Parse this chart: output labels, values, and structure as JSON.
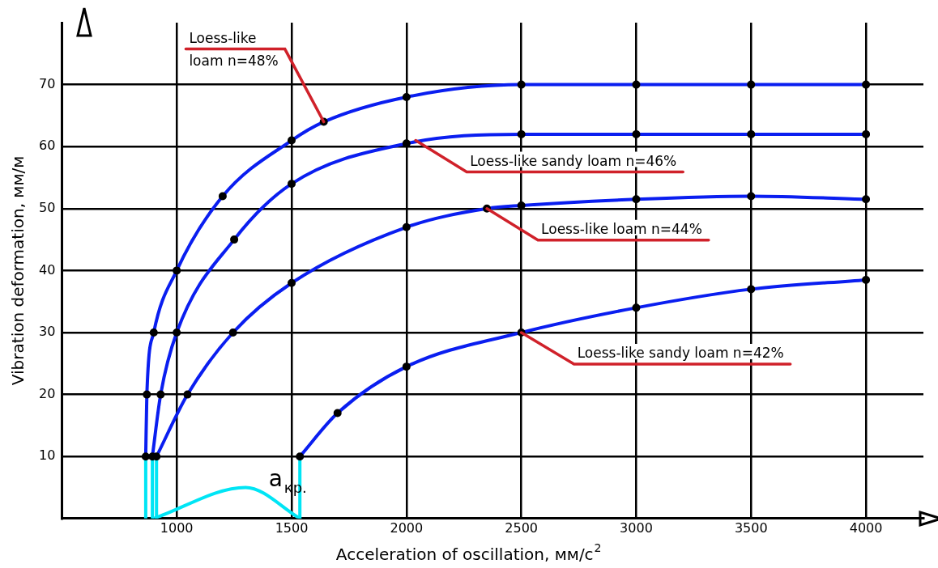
{
  "chart_data": {
    "type": "line",
    "xlabel": "Acceleration of oscillation, мм/c$^{2}$",
    "ylabel": "Vibration deformation, мм/м",
    "xlim": [
      500,
      4250
    ],
    "ylim": [
      0,
      80
    ],
    "xticks": [
      1000,
      1500,
      2000,
      2500,
      3000,
      3500,
      4000
    ],
    "yticks": [
      10,
      20,
      30,
      40,
      50,
      60,
      70
    ],
    "grid": true,
    "legend": false,
    "marker": "circle",
    "line_style": "solid",
    "series": [
      {
        "color": "#0a1ef0",
        "x": [
          865,
          870,
          900,
          1000,
          1200,
          1500,
          1640,
          2000,
          2500,
          3000,
          3500,
          4000
        ],
        "values": [
          10,
          20,
          30,
          40,
          52,
          61,
          64,
          68,
          70,
          70,
          70,
          70
        ]
      },
      {
        "color": "#0a1ef0",
        "x": [
          894,
          930,
          1000,
          1250,
          1500,
          2000,
          2500,
          3000,
          3500,
          4000
        ],
        "values": [
          10,
          20,
          30,
          45,
          54,
          60.5,
          62,
          62,
          62,
          62
        ]
      },
      {
        "color": "#0a1ef0",
        "x": [
          912,
          1047,
          1245,
          1500,
          2000,
          2350,
          2500,
          3000,
          3500,
          4000
        ],
        "values": [
          10,
          20,
          30,
          38,
          47,
          50,
          50.5,
          51.5,
          52,
          51.5
        ]
      },
      {
        "color": "#0a1ef0",
        "x": [
          1536,
          1700,
          2000,
          2500,
          3000,
          3500,
          4000
        ],
        "values": [
          10,
          17,
          24.5,
          30,
          34,
          37,
          38.5
        ]
      },
      {
        "color": "#00e5f5",
        "x": [
          865,
          865
        ],
        "values": [
          0,
          10
        ],
        "marker": "none"
      },
      {
        "color": "#00e5f5",
        "x": [
          894,
          894
        ],
        "values": [
          0,
          10
        ],
        "marker": "none"
      },
      {
        "color": "#00e5f5",
        "x": [
          912,
          912
        ],
        "values": [
          0,
          10
        ],
        "marker": "none"
      },
      {
        "color": "#00e5f5",
        "x": [
          1536,
          1536
        ],
        "values": [
          0,
          10
        ],
        "marker": "none"
      },
      {
        "color": "#00e5f5",
        "x": [
          900,
          1300,
          1536
        ],
        "values": [
          0,
          5,
          0
        ],
        "marker": "none"
      }
    ],
    "annotations": [
      {
        "text": "Loess-like\nloam n=48%",
        "x": 1640,
        "y": 64
      },
      {
        "text": "Loess-like sandy loam n=46%",
        "x": 2040,
        "y": 61
      },
      {
        "text": "Loess-like loam n=44%",
        "x": 2350,
        "y": 50
      },
      {
        "text": "Loess-like sandy loam n=42%",
        "x": 2500,
        "y": 30
      },
      "a$_{кр.}$"
    ]
  }
}
